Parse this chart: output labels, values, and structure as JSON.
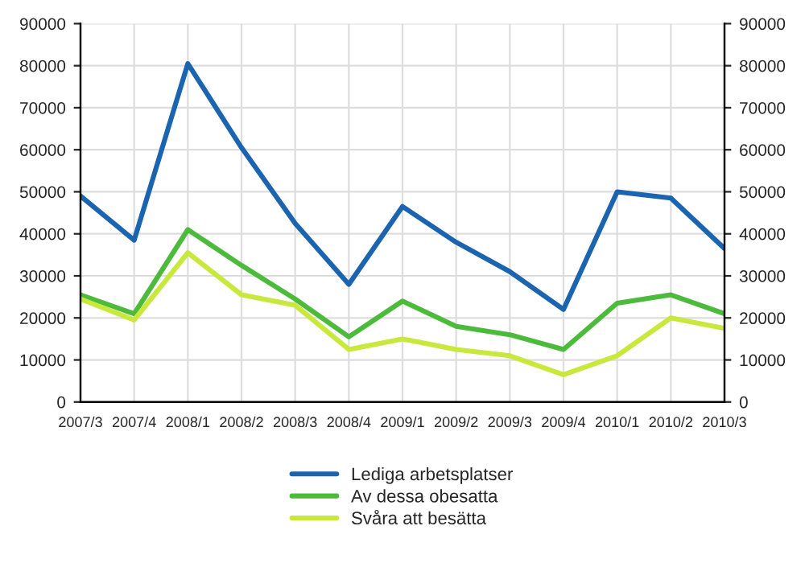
{
  "chart_data": {
    "type": "line",
    "categories": [
      "2007/3",
      "2007/4",
      "2008/1",
      "2008/2",
      "2008/3",
      "2008/4",
      "2009/1",
      "2009/2",
      "2009/3",
      "2009/4",
      "2010/1",
      "2010/2",
      "2010/3"
    ],
    "series": [
      {
        "name": "Lediga arbetsplatser",
        "color": "#1a64b0",
        "values": [
          49000,
          38500,
          80500,
          60500,
          42500,
          28000,
          46500,
          38000,
          31000,
          22000,
          50000,
          48500,
          36500
        ]
      },
      {
        "name": "Av dessa obesatta",
        "color": "#4cbb3c",
        "values": [
          25500,
          21000,
          41000,
          32500,
          24500,
          15500,
          24000,
          18000,
          16000,
          12500,
          23500,
          25500,
          21000
        ]
      },
      {
        "name": "Svåra att besätta",
        "color": "#c8e83c",
        "values": [
          24500,
          19500,
          35500,
          25500,
          23000,
          12500,
          15000,
          12500,
          11000,
          6500,
          11000,
          20000,
          17500
        ]
      }
    ],
    "ylim": [
      0,
      90000
    ],
    "yticks": [
      0,
      10000,
      20000,
      30000,
      40000,
      50000,
      60000,
      70000,
      80000,
      90000
    ],
    "y2lim": [
      0,
      90000
    ],
    "y2ticks": [
      0,
      10000,
      20000,
      30000,
      40000,
      50000,
      60000,
      70000,
      80000,
      90000
    ],
    "grid": true,
    "legend": "bottom",
    "marker": "none",
    "line_style": "solid"
  }
}
